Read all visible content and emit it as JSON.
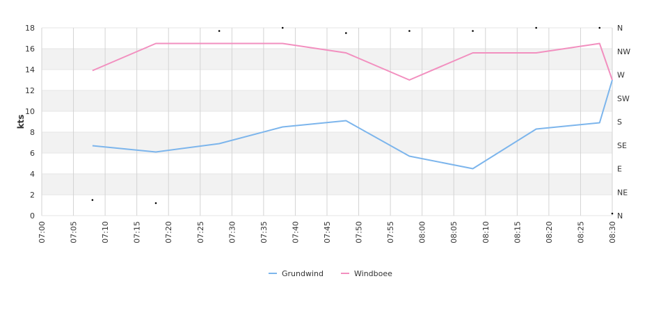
{
  "chart_data": {
    "type": "line",
    "ylabel": "kts",
    "ylim": [
      0,
      18
    ],
    "yticks": [
      "0",
      "2",
      "4",
      "6",
      "8",
      "10",
      "12",
      "14",
      "16",
      "18"
    ],
    "y2ticks": [
      "N",
      "NE",
      "E",
      "SE",
      "S",
      "SW",
      "W",
      "NW",
      "N"
    ],
    "xticks": [
      "07:00",
      "07:05",
      "07:10",
      "07:15",
      "07:20",
      "07:25",
      "07:30",
      "07:35",
      "07:40",
      "07:45",
      "07:50",
      "07:55",
      "08:00",
      "08:05",
      "08:10",
      "08:15",
      "08:20",
      "08:25",
      "08:30"
    ],
    "x": [
      "07:08",
      "07:18",
      "07:28",
      "07:38",
      "07:48",
      "07:58",
      "08:08",
      "08:18",
      "08:28",
      "08:30"
    ],
    "series": [
      {
        "name": "Grundwind",
        "color": "#7cb5ec",
        "values": [
          6.7,
          6.1,
          6.9,
          8.5,
          9.1,
          5.7,
          4.5,
          8.3,
          8.9,
          13.0
        ]
      },
      {
        "name": "Windboee",
        "color": "#f28fbf",
        "values": [
          13.9,
          16.5,
          16.5,
          16.5,
          15.6,
          13.0,
          15.6,
          15.6,
          16.5,
          13.0
        ]
      }
    ],
    "direction_points": [
      {
        "x": "07:08",
        "y": 1.5
      },
      {
        "x": "07:18",
        "y": 1.2
      },
      {
        "x": "07:28",
        "y": 17.7
      },
      {
        "x": "07:38",
        "y": 18.0
      },
      {
        "x": "07:48",
        "y": 17.5
      },
      {
        "x": "07:58",
        "y": 17.7
      },
      {
        "x": "08:08",
        "y": 17.7
      },
      {
        "x": "08:18",
        "y": 18.0
      },
      {
        "x": "08:28",
        "y": 18.0
      },
      {
        "x": "08:30",
        "y": 0.2
      }
    ],
    "grid": true,
    "band_color": "#f2f2f2",
    "legend": "bottom-center"
  }
}
